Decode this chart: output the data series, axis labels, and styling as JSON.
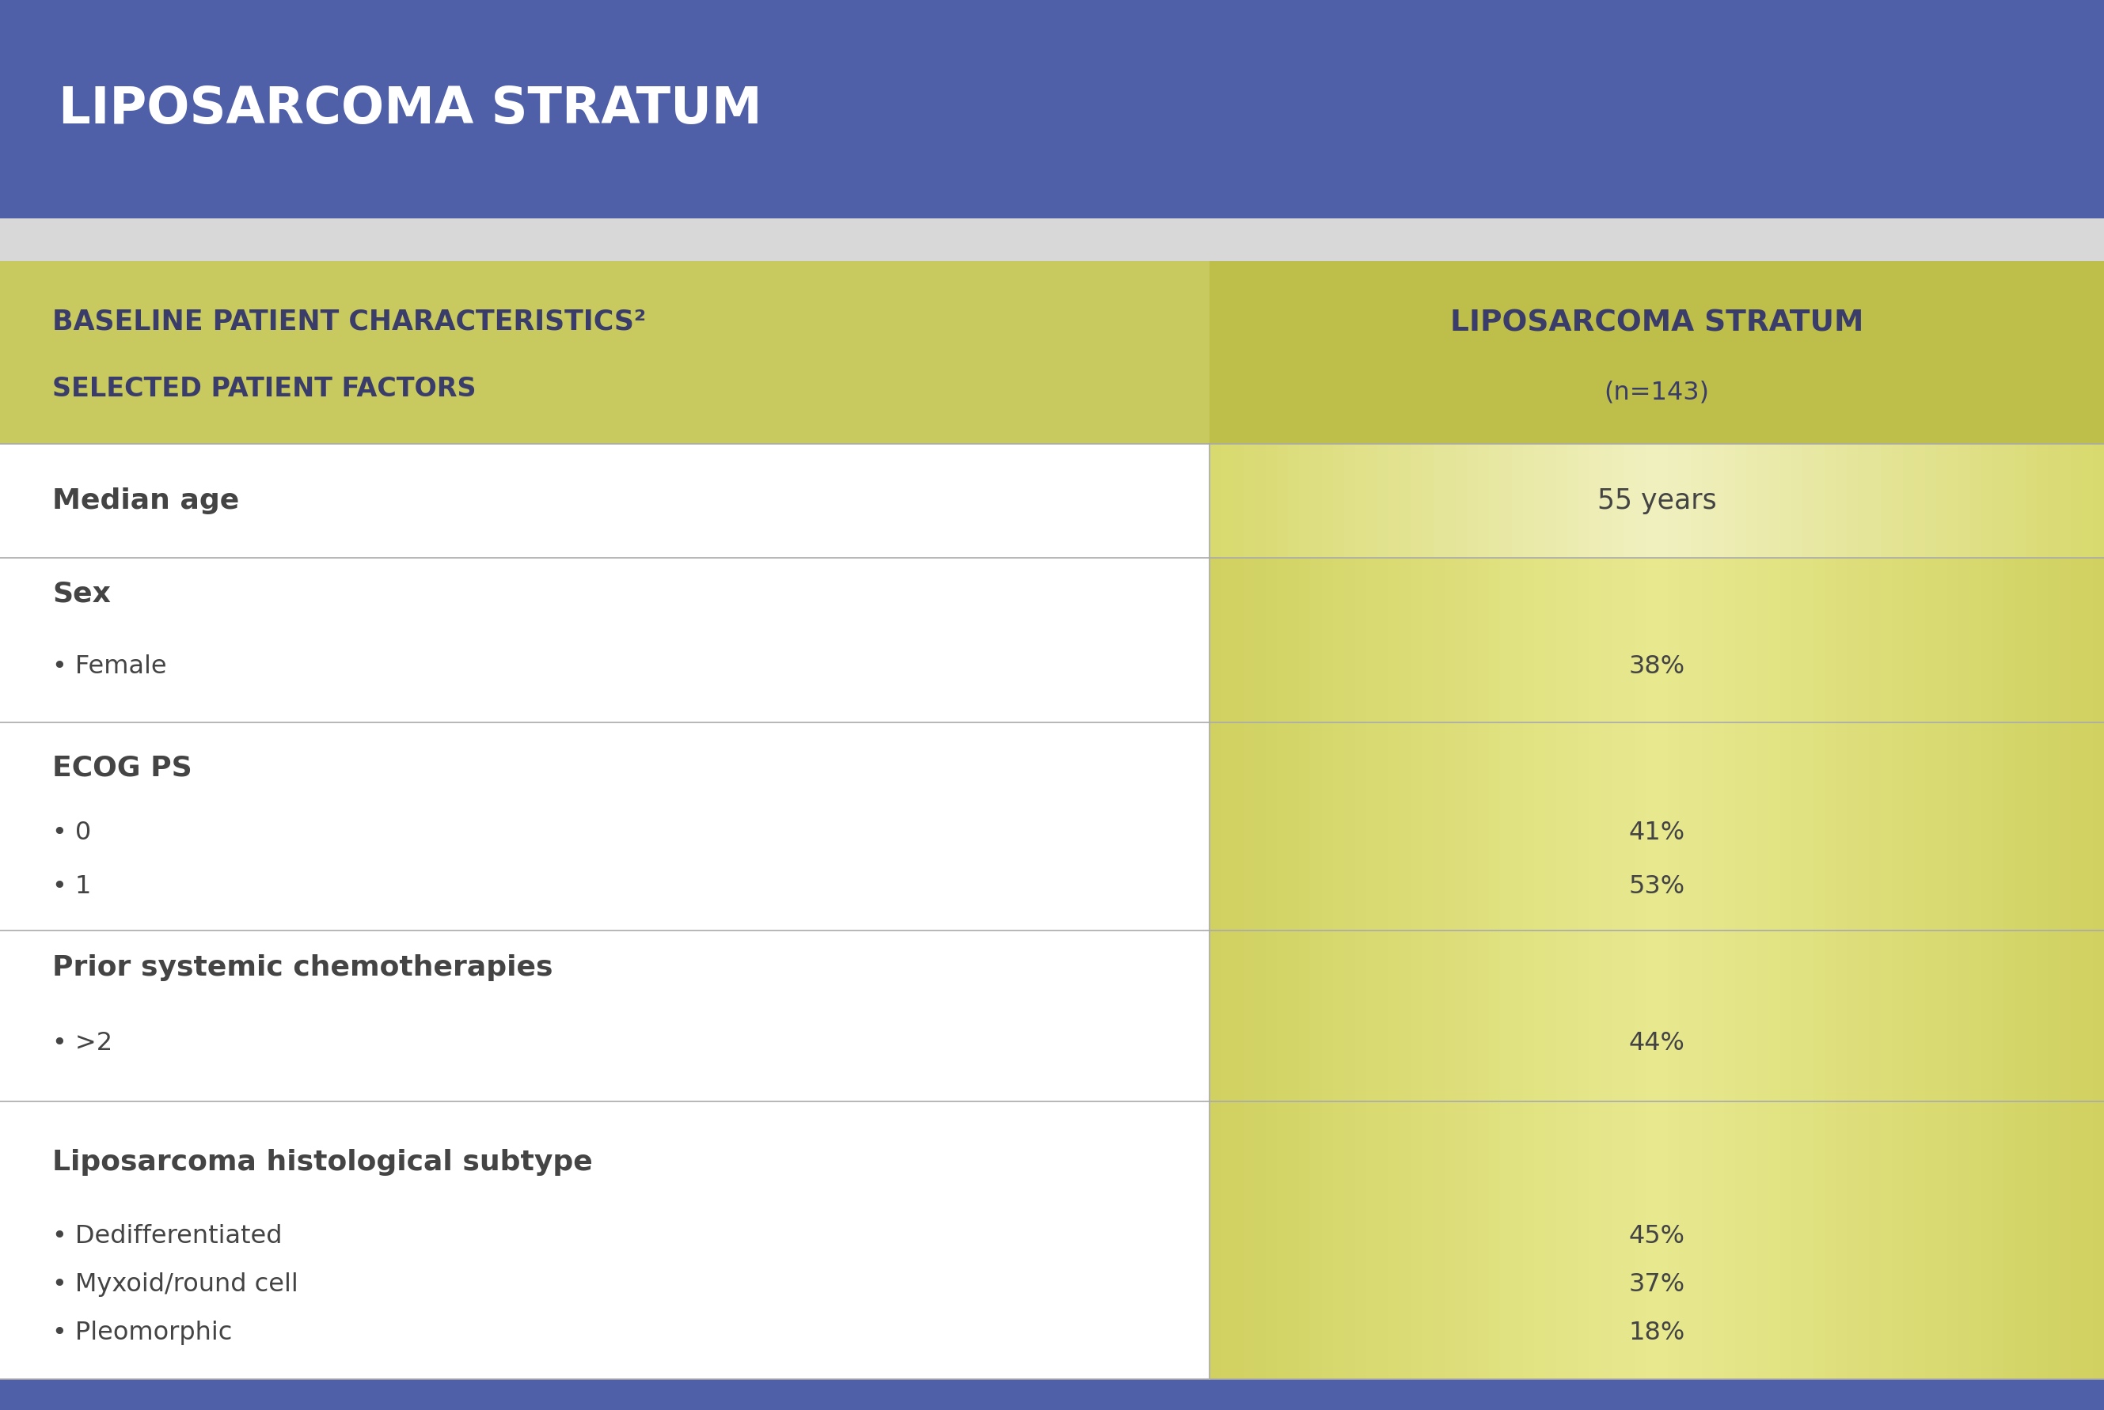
{
  "title": "LIPOSARCOMA STRATUM",
  "title_bg": "#4f5fa8",
  "title_color": "#ffffff",
  "header_left_bg": "#c8c95e",
  "header_right_bg": "#bebe4a",
  "header_left_line1": "BASELINE PATIENT CHARACTERISTICS²",
  "header_left_line2": "SELECTED PATIENT FACTORS",
  "header_right_line1": "LIPOSARCOMA STRATUM",
  "header_right_line2": "(n=143)",
  "header_text_color": "#3a3c6a",
  "col_split": 0.575,
  "rows": [
    {
      "left_bold": "Median age",
      "left_items": [],
      "right_values": [
        "55 years"
      ],
      "bg_left": "#ffffff",
      "bg_right_dark": "#d8d96e",
      "bg_right_light": "#f0f0c0"
    },
    {
      "left_bold": "Sex",
      "left_items": [
        "Female"
      ],
      "right_values": [
        "38%"
      ],
      "bg_left": "#ffffff",
      "bg_right_dark": "#d0d160",
      "bg_right_light": "#e8e990"
    },
    {
      "left_bold": "ECOG PS",
      "left_items": [
        "0",
        "1"
      ],
      "right_values": [
        "41%",
        "53%"
      ],
      "bg_left": "#ffffff",
      "bg_right_dark": "#d0d160",
      "bg_right_light": "#e8e990"
    },
    {
      "left_bold": "Prior systemic chemotherapies",
      "left_items": [
        ">2"
      ],
      "right_values": [
        "44%"
      ],
      "bg_left": "#ffffff",
      "bg_right_dark": "#d0d160",
      "bg_right_light": "#e8e990"
    },
    {
      "left_bold": "Liposarcoma histological subtype",
      "left_items": [
        "Dedifferentiated",
        "Myxoid/round cell",
        "Pleomorphic"
      ],
      "right_values": [
        "45%",
        "37%",
        "18%"
      ],
      "bg_left": "#ffffff",
      "bg_right_dark": "#d0d160",
      "bg_right_light": "#e8e990"
    }
  ],
  "text_color_dark": "#2a2a2a",
  "text_color_row": "#444444",
  "bullet": "•",
  "bottom_bar_color": "#4f5fa8",
  "divider_color": "#aaaaaa",
  "gap_color": "#d8d8d8"
}
